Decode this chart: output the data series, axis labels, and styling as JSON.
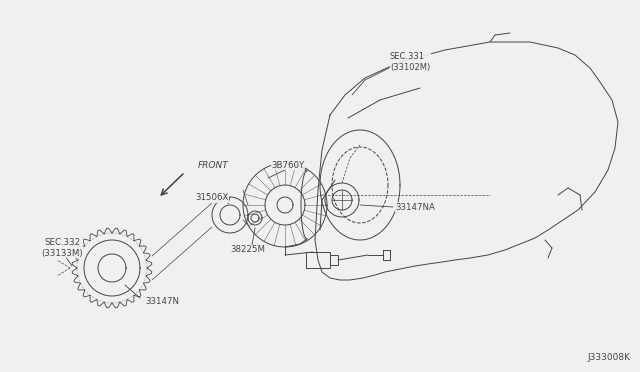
{
  "bg_color": "#f0f0f0",
  "fig_width": 6.4,
  "fig_height": 3.72,
  "diagram_id": "J333008K",
  "labels": {
    "sec331": "SEC.331\n(33102M)",
    "sec332": "SEC.332\n(33133M)",
    "front": "FRONT",
    "p3B760Y": "3B760Y",
    "p31506X": "31506X",
    "p33147NA": "33147NA",
    "p38225M": "38225M",
    "p33147N": "33147N"
  },
  "text_color": "#444444",
  "line_color": "#444444",
  "lw": 0.7
}
